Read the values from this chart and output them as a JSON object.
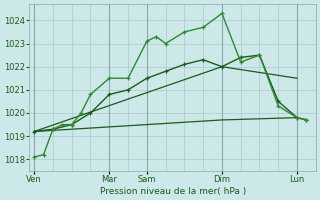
{
  "background_color": "#cce8e8",
  "grid_color": "#aacccc",
  "line_color_dark": "#1a5c1a",
  "line_color_light": "#2e8b2e",
  "xlabel": "Pression niveau de la mer( hPa )",
  "ylim": [
    1017.5,
    1024.7
  ],
  "yticks": [
    1018,
    1019,
    1020,
    1021,
    1022,
    1023,
    1024
  ],
  "day_labels": [
    "Ven",
    "Mar",
    "Sam",
    "Dim",
    "Lun"
  ],
  "day_positions": [
    0,
    8,
    12,
    20,
    28
  ],
  "xlim": [
    -0.5,
    30
  ],
  "num_xgrid": 30,
  "vline_positions": [
    0,
    8,
    12,
    20,
    28
  ],
  "series1": {
    "x": [
      0,
      1,
      2,
      3,
      4,
      5,
      6,
      8,
      10,
      12,
      13,
      14,
      16,
      18,
      20,
      22,
      24,
      26,
      28,
      29
    ],
    "y": [
      1018.1,
      1018.2,
      1019.3,
      1019.5,
      1019.5,
      1020.0,
      1020.8,
      1021.5,
      1021.5,
      1023.1,
      1023.3,
      1023.0,
      1023.5,
      1023.7,
      1024.3,
      1022.2,
      1022.5,
      1020.3,
      1019.8,
      1019.7
    ],
    "color": "#2e8b2e",
    "lw": 1.0,
    "marker": "+"
  },
  "series2": {
    "x": [
      0,
      2,
      4,
      6,
      8,
      10,
      12,
      14,
      16,
      18,
      20,
      22,
      24,
      26,
      28,
      29
    ],
    "y": [
      1019.2,
      1019.3,
      1019.5,
      1020.0,
      1020.8,
      1021.0,
      1021.5,
      1021.8,
      1022.1,
      1022.3,
      1022.0,
      1022.4,
      1022.5,
      1020.5,
      1019.8,
      1019.7
    ],
    "color": "#1a5c1a",
    "lw": 1.0,
    "marker": "+"
  },
  "series3_flat": {
    "x": [
      0,
      8,
      12,
      20,
      28
    ],
    "y": [
      1019.2,
      1019.4,
      1019.5,
      1019.7,
      1019.8
    ],
    "color": "#1a5c1a",
    "lw": 0.9
  },
  "series4_diag": {
    "x": [
      0,
      20,
      28
    ],
    "y": [
      1019.2,
      1022.0,
      1021.5
    ],
    "color": "#1a5c1a",
    "lw": 0.9
  }
}
